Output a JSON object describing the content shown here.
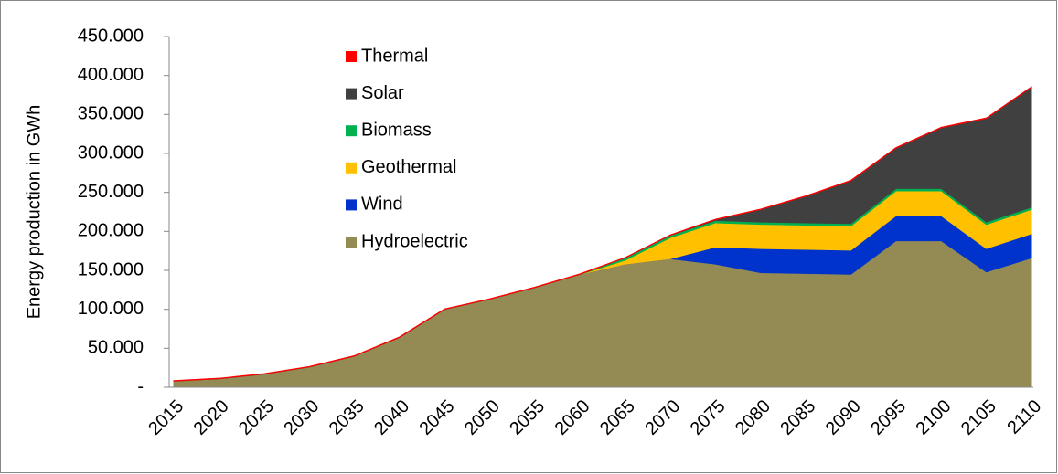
{
  "chart_data": {
    "type": "stacked-area",
    "y_label": "Energy production  in GWh",
    "categories": [
      "2015",
      "2020",
      "2025",
      "2030",
      "2035",
      "2040",
      "2045",
      "2050",
      "2055",
      "2060",
      "2065",
      "2070",
      "2075",
      "2080",
      "2085",
      "2090",
      "2095",
      "2100",
      "2105",
      "2110"
    ],
    "series": [
      {
        "name": "Hydroelectric",
        "color": "#948a54",
        "values": [
          8000,
          11000,
          17000,
          26000,
          40000,
          64000,
          100000,
          113000,
          128000,
          145000,
          158000,
          165000,
          158000,
          147000,
          146000,
          145000,
          188000,
          188000,
          148000,
          166000
        ]
      },
      {
        "name": "Wind",
        "color": "#0033cc",
        "values": [
          0,
          0,
          0,
          0,
          0,
          0,
          0,
          0,
          0,
          0,
          0,
          0,
          22000,
          31000,
          31000,
          31000,
          32000,
          32000,
          30000,
          31000
        ]
      },
      {
        "name": "Geothermal",
        "color": "#ffc000",
        "values": [
          0,
          0,
          0,
          0,
          0,
          0,
          0,
          0,
          0,
          0,
          5000,
          27000,
          31000,
          31000,
          31000,
          31000,
          32000,
          32000,
          31000,
          31000
        ]
      },
      {
        "name": "Biomass",
        "color": "#00b050",
        "values": [
          0,
          0,
          0,
          0,
          0,
          0,
          0,
          0,
          0,
          0,
          3000,
          3000,
          3000,
          3000,
          3000,
          3000,
          3000,
          3000,
          3000,
          3000
        ]
      },
      {
        "name": "Solar",
        "color": "#404040",
        "values": [
          0,
          0,
          0,
          0,
          0,
          0,
          0,
          0,
          0,
          0,
          0,
          0,
          1000,
          16000,
          34000,
          55000,
          52000,
          78000,
          133000,
          154000
        ]
      },
      {
        "name": "Thermal",
        "color": "#ff0000",
        "values": [
          500,
          500,
          500,
          500,
          500,
          500,
          500,
          500,
          500,
          500,
          500,
          500,
          500,
          500,
          500,
          500,
          500,
          500,
          500,
          500
        ]
      }
    ],
    "ylim": [
      0,
      450000
    ],
    "yticks": [
      {
        "value": 0,
        "label": "-"
      },
      {
        "value": 50000,
        "label": "50.000"
      },
      {
        "value": 100000,
        "label": "100.000"
      },
      {
        "value": 150000,
        "label": "150.000"
      },
      {
        "value": 200000,
        "label": "200.000"
      },
      {
        "value": 250000,
        "label": "250.000"
      },
      {
        "value": 300000,
        "label": "300.000"
      },
      {
        "value": 350000,
        "label": "350.000"
      },
      {
        "value": 400000,
        "label": "400.000"
      },
      {
        "value": 450000,
        "label": "450.000"
      }
    ],
    "grid": false,
    "legend": "top-left"
  }
}
